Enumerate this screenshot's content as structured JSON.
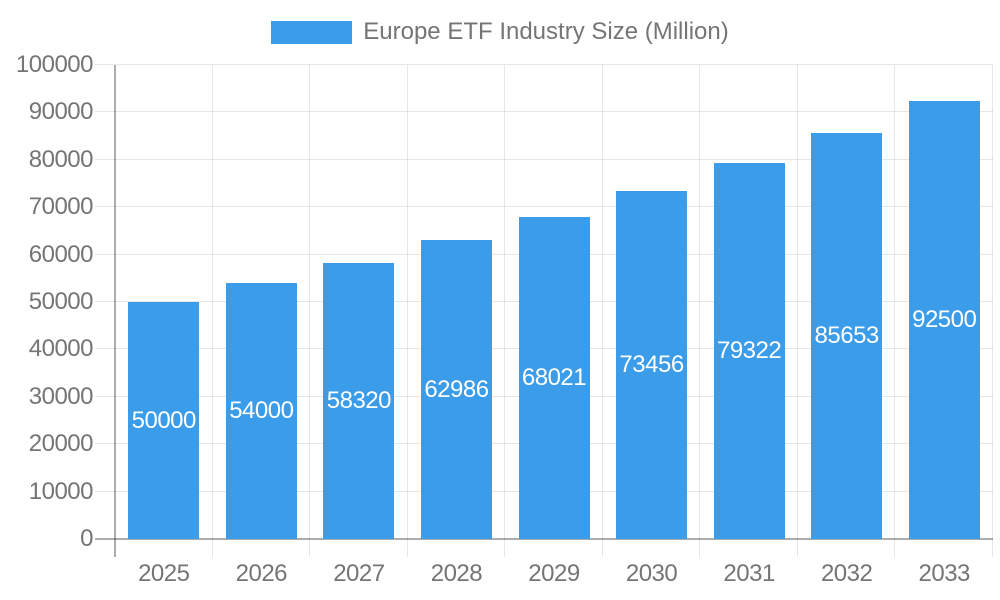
{
  "legend": {
    "label": "Europe ETF Industry Size (Million)"
  },
  "chart_data": {
    "type": "bar",
    "title": "Europe ETF Industry Size (Million)",
    "categories": [
      "2025",
      "2026",
      "2027",
      "2028",
      "2029",
      "2030",
      "2031",
      "2032",
      "2033"
    ],
    "values": [
      50000,
      54000,
      58320,
      62986,
      68021,
      73456,
      79322,
      85653,
      92500
    ],
    "series_name": "Europe ETF Industry Size (Million)",
    "xlabel": "",
    "ylabel": "",
    "ylim": [
      0,
      100000
    ],
    "ytick_step": 10000,
    "ytick_labels": [
      "0",
      "10000",
      "20000",
      "30000",
      "40000",
      "50000",
      "60000",
      "70000",
      "80000",
      "90000",
      "100000"
    ],
    "grid": true,
    "legend_position": "top",
    "bar_color": "#3b9cea",
    "bar_value_label_color": "#ffffff",
    "axis_text_color": "#757575",
    "gridline_color": "#e6e6e6",
    "axis_line_color": "#aaaaaa"
  }
}
